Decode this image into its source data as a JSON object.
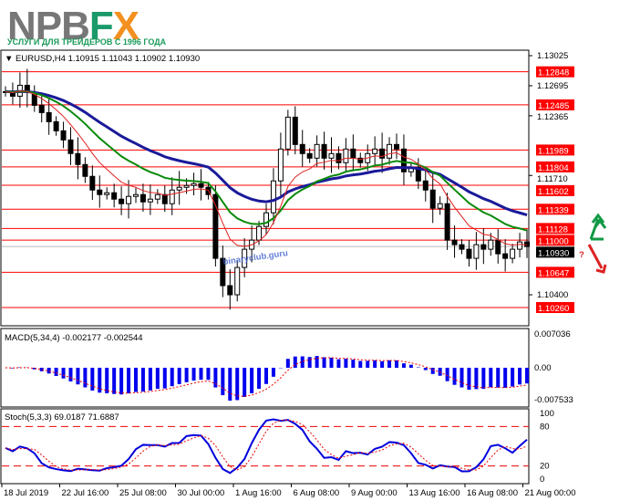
{
  "logo": {
    "text": "NPBFX",
    "tagline": "УСЛУГИ ДЛЯ ТРЕЙДЕРОВ С 1996 ГОДА"
  },
  "watermark": "binaryclub.guru",
  "chart_data": {
    "type": "candlestick",
    "header": "EURUSD,H4  1.10915 1.11043 1.10902 1.10930",
    "ylim": [
      1.1007,
      1.1316
    ],
    "y_ticks": [
      "1.13025",
      "1.12695",
      "1.12365",
      "1.11710",
      "1.10400"
    ],
    "current_price": "1.10930",
    "levels": [
      "1.12848",
      "1.12485",
      "1.11989",
      "1.11804",
      "1.11602",
      "1.11339",
      "1.11128",
      "1.11000",
      "1.10647",
      "1.10260"
    ],
    "closes": [
      1.1263,
      1.1258,
      1.127,
      1.1262,
      1.1248,
      1.124,
      1.123,
      1.122,
      1.121,
      1.1195,
      1.1183,
      1.117,
      1.1155,
      1.115,
      1.1152,
      1.1145,
      1.114,
      1.1148,
      1.115,
      1.1142,
      1.1145,
      1.115,
      1.114,
      1.1155,
      1.1158,
      1.116,
      1.1162,
      1.1158,
      1.115,
      1.108,
      1.105,
      1.104,
      1.107,
      1.109,
      1.11,
      1.1115,
      1.113,
      1.1165,
      1.12,
      1.1235,
      1.1205,
      1.1195,
      1.119,
      1.1205,
      1.119,
      1.1195,
      1.1185,
      1.12,
      1.119,
      1.1185,
      1.1195,
      1.12,
      1.119,
      1.1205,
      1.12,
      1.1175,
      1.118,
      1.1165,
      1.1155,
      1.1135,
      1.114,
      1.11,
      1.1095,
      1.109,
      1.108,
      1.1095,
      1.109,
      1.11,
      1.1085,
      1.108,
      1.109,
      1.1098,
      1.1093
    ],
    "x_ticks": [
      "18 Jul 2019",
      "22 Jul 16:00",
      "25 Jul 08:00",
      "30 Jul 00:00",
      "1 Aug 16:00",
      "6 Aug 08:00",
      "9 Aug 00:00",
      "13 Aug 16:00",
      "16 Aug 08:00",
      "21 Aug 00:00"
    ],
    "macd": {
      "label": "MACD(5,34,4) -0.002177 -0.002544",
      "ticks": [
        "0.007036",
        "0.00",
        "-0.007533"
      ]
    },
    "stoch": {
      "label": "Stoch(5,3,3) 69.0187 71.6887",
      "ticks": [
        "100",
        "80",
        "20",
        "0"
      ],
      "levels": [
        80,
        20
      ]
    },
    "colors": {
      "level": "#ff0000",
      "ma_slow": "#1a1a9a",
      "ma_mid": "#0a8a0a",
      "ma_fast": "#e02020",
      "macd": "#0000ee",
      "up_arrow": "#119944",
      "down_arrow": "#dd2222"
    }
  }
}
